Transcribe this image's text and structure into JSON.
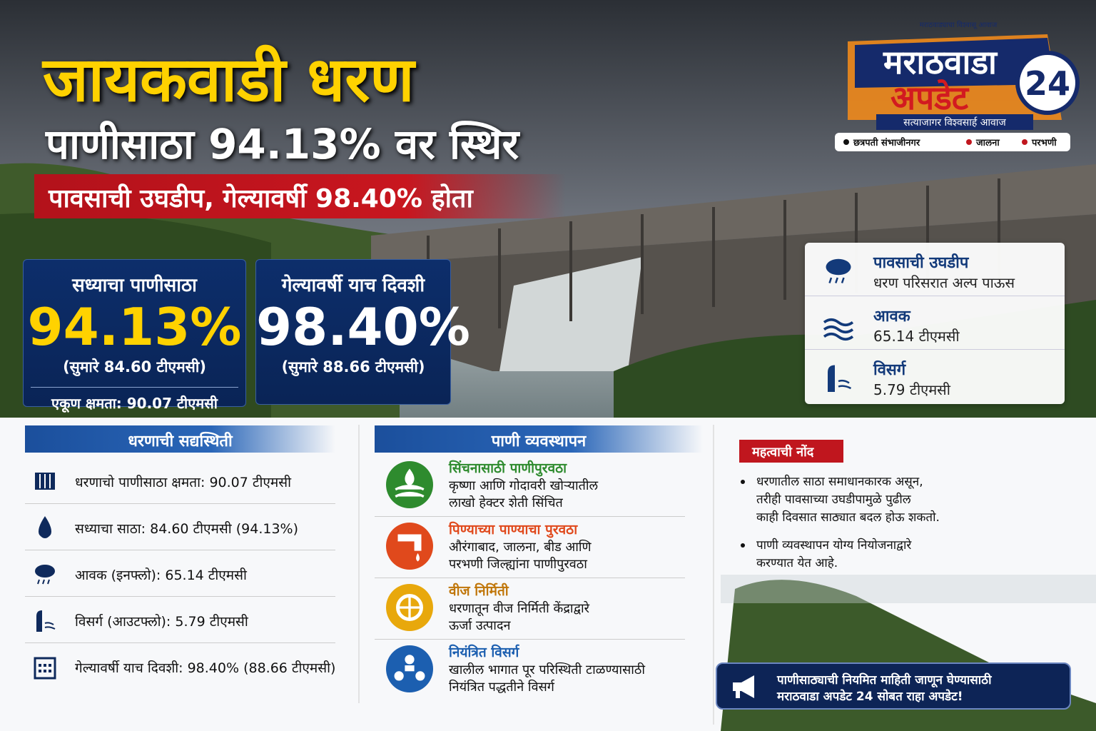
{
  "header": {
    "title": "जायकवाडी धरण",
    "subtitle": "पाणीसाठा 94.13% वर स्थिर",
    "banner": "पावसाची उघडीप, गेल्यावर्षी 98.40% होता"
  },
  "logo": {
    "tagline": "मराठवाड्याचा विश्वासू आवाज",
    "line1": "मराठवाडा",
    "line2": "अपडेट",
    "number": "24",
    "slogan": "सत्याजागर विश्वसार्ह आवाज",
    "regions": [
      "छत्रपती संभाजीनगर",
      "जालना",
      "परभणी"
    ]
  },
  "cards": {
    "current": {
      "label": "सध्याचा पाणीसाठा",
      "value": "94.13%",
      "sub": "(सुमारे 84.60 टीएमसी)",
      "capacity": "एकूण क्षमता: 90.07 टीएमसी"
    },
    "last_year": {
      "label": "गेल्यावर्षी याच दिवशी",
      "value": "98.40%",
      "sub": "(सुमारे 88.66 टीएमसी)"
    }
  },
  "info_box": [
    {
      "title": "पावसाची उघडीप",
      "text": "धरण परिसरात अल्प पाऊस"
    },
    {
      "title": "आवक",
      "text": "65.14 टीएमसी"
    },
    {
      "title": "विसर्ग",
      "text": "5.79 टीएमसी"
    }
  ],
  "status": {
    "heading": "धरणाची सद्यस्थिती",
    "items": [
      "धरणाचो पाणीसाठा क्षमता: 90.07 टीएमसी",
      "सध्याचा साठा: 84.60 टीएमसी (94.13%)",
      "आवक (इनफ्लो): 65.14 टीएमसी",
      "विसर्ग (आउटफ्लो): 5.79 टीएमसी",
      "गेल्यावर्षी याच दिवशी: 98.40% (88.66 टीएमसी)"
    ]
  },
  "management": {
    "heading": "पाणी व्यवस्थापन",
    "items": [
      {
        "title": "सिंचनासाठी पाणीपुरवठा",
        "lines": [
          "कृष्णा आणि गोदावरी खोऱ्यातील",
          "लाखो हेक्टर शेती सिंचित"
        ]
      },
      {
        "title": "पिण्याच्या पाण्याचा पुरवठा",
        "lines": [
          "औरंगाबाद, जालना, बीड आणि",
          "परभणी जिल्ह्यांना पाणीपुरवठा"
        ]
      },
      {
        "title": "वीज निर्मिती",
        "lines": [
          "धरणातून वीज निर्मिती केंद्राद्वारे",
          "ऊर्जा उत्पादन"
        ]
      },
      {
        "title": "नियंत्रित विसर्ग",
        "lines": [
          "खालील भागात पूर परिस्थिती टाळण्यासाठी",
          "नियंत्रित पद्धतीने विसर्ग"
        ]
      }
    ]
  },
  "note": {
    "heading": "महत्वाची नोंद",
    "bullets": [
      [
        "धरणातील साठा समाधानकारक असून,",
        "तरीही पावसाच्या उघडीपामुळे पुढील",
        "काही दिवसात साठ्यात बदल होऊ शकतो."
      ],
      [
        "पाणी व्यवस्थापन योग्य नियोजनाद्वारे",
        "करण्यात येत आहे."
      ]
    ]
  },
  "footer": {
    "lines": [
      "पाणीसाठ्याची नियमित माहिती जाणून घेण्यासाठी",
      "मराठवाडा अपडेट 24 सोबत राहा अपडेट!"
    ]
  }
}
